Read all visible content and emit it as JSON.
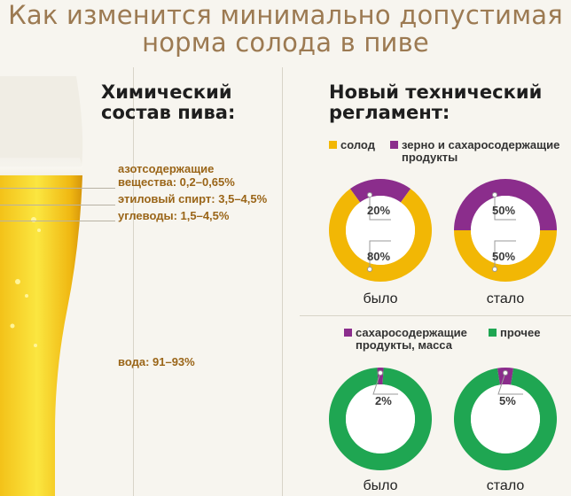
{
  "title_line1": "Как изменится минимально допустимая",
  "title_line2": "норма солода в пиве",
  "left": {
    "heading_line1": "Химический",
    "heading_line2": "состав пива:",
    "components": [
      {
        "line1": "азотсодержащие",
        "line2": "вещества: 0,2–0,65%"
      },
      {
        "line1": "этиловый спирт: 3,5–4,5%"
      },
      {
        "line1": "углеводы: 1,5–4,5%"
      },
      {
        "line1": "вода: 91–93%"
      }
    ]
  },
  "right": {
    "heading_line1": "Новый технический",
    "heading_line2": "регламент:",
    "legend1": [
      {
        "label": "солод",
        "color": "#f2b705"
      },
      {
        "label_line1": "зерно и сахаросодержащие",
        "label_line2": "продукты",
        "color": "#8b2d8c"
      }
    ],
    "legend2": [
      {
        "label_line1": "сахаросодержащие",
        "label_line2": "продукты, масса",
        "color": "#8b2d8c"
      },
      {
        "label": "прочее",
        "color": "#1fa652"
      }
    ]
  },
  "chart_data": [
    {
      "type": "pie",
      "caption": "было",
      "slices": [
        {
          "name": "солод",
          "value": 80,
          "label": "80%",
          "color": "#f2b705"
        },
        {
          "name": "зерно и сахаросодержащие продукты",
          "value": 20,
          "label": "20%",
          "color": "#8b2d8c"
        }
      ]
    },
    {
      "type": "pie",
      "caption": "стало",
      "slices": [
        {
          "name": "солод",
          "value": 50,
          "label": "50%",
          "color": "#f2b705"
        },
        {
          "name": "зерно и сахаросодержащие продукты",
          "value": 50,
          "label": "50%",
          "color": "#8b2d8c"
        }
      ]
    },
    {
      "type": "pie",
      "caption": "было",
      "slices": [
        {
          "name": "сахаросодержащие продукты, масса",
          "value": 2,
          "label": "2%",
          "color": "#8b2d8c"
        },
        {
          "name": "прочее",
          "value": 98,
          "label": "",
          "color": "#1fa652"
        }
      ]
    },
    {
      "type": "pie",
      "caption": "стало",
      "slices": [
        {
          "name": "сахаросодержащие продукты, масса",
          "value": 5,
          "label": "5%",
          "color": "#8b2d8c"
        },
        {
          "name": "прочее",
          "value": 95,
          "label": "",
          "color": "#1fa652"
        }
      ]
    }
  ]
}
